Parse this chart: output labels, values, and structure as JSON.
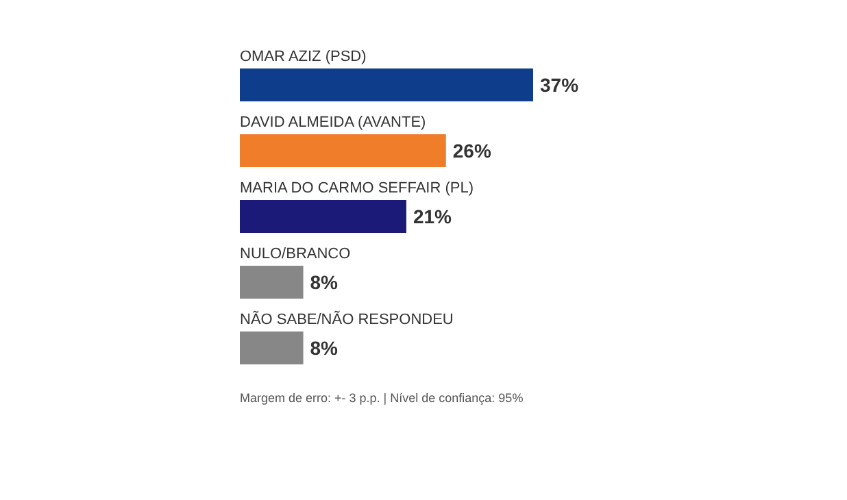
{
  "chart_data": {
    "type": "bar",
    "orientation": "horizontal",
    "categories": [
      "OMAR AZIZ (PSD)",
      "DAVID ALMEIDA (AVANTE)",
      "MARIA DO CARMO SEFFAIR (PL)",
      "NULO/BRANCO",
      "NÃO SABE/NÃO RESPONDEU"
    ],
    "values": [
      37,
      26,
      21,
      8,
      8
    ],
    "colors": [
      "#0e3d8c",
      "#f07d2a",
      "#1c1a78",
      "#878787",
      "#878787"
    ],
    "value_labels": [
      "37%",
      "26%",
      "21%",
      "8%",
      "8%"
    ],
    "tick_labels": "y",
    "annotations": [
      "Margem de erro: +- 3 p.p. | Nível de confiança: 95%"
    ]
  }
}
